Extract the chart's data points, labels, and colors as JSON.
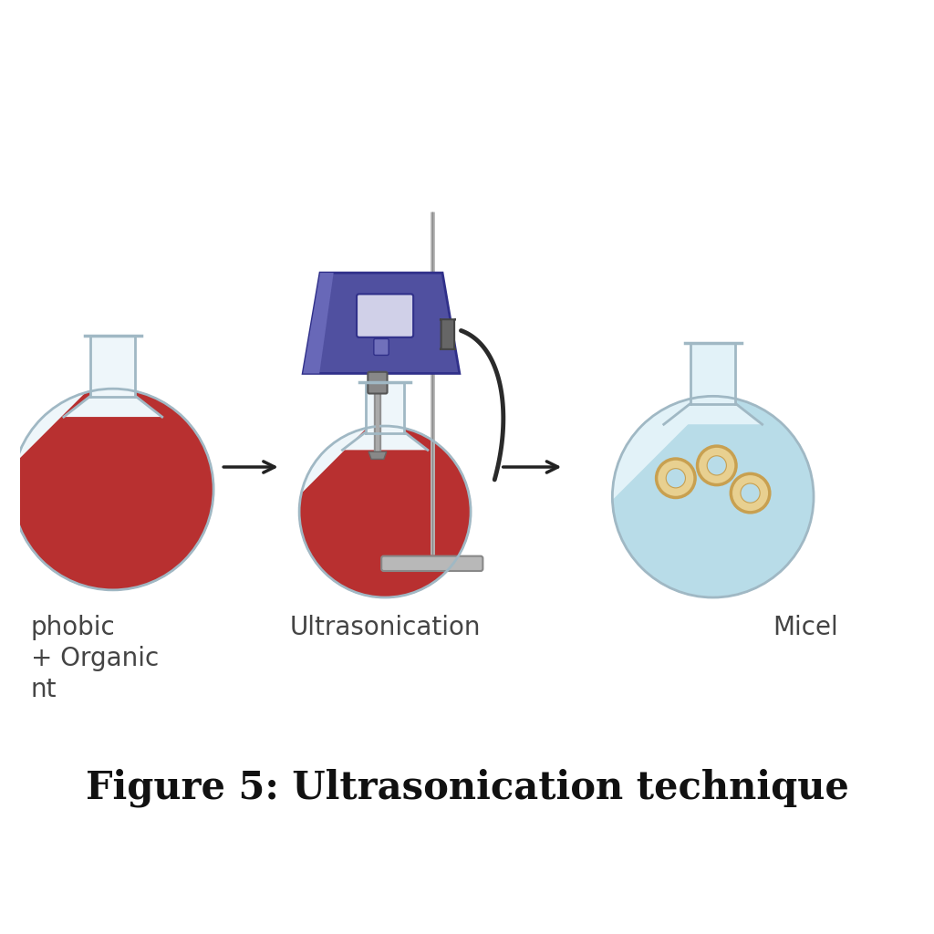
{
  "title": "Figure 5: Ultrasonication technique",
  "title_fontsize": 30,
  "background_color": "#ffffff",
  "label1_lines": [
    "phobic",
    "+ Organic",
    "nt"
  ],
  "label2": "Ultrasonication",
  "label3": "Micel",
  "flask1_liquid_color": "#b83030",
  "flask2_liquid_color": "#b83030",
  "flask3_liquid_color": "#b8dce8",
  "flask_glass_color": "#eef6fa",
  "flask_glass_edge": "#a0b8c4",
  "sonicator_body_color": "#5050a0",
  "sonicator_dark": "#30308a",
  "sonicator_mid": "#6868b8",
  "sonicator_light": "#9898cc",
  "stand_color": "#b8b8b8",
  "stand_dark": "#888888",
  "micelle_ring_outer": "#c8a050",
  "micelle_ring_face": "#e8d090",
  "micelle_inner_color": "#b8dce8",
  "arrow_color": "#222222",
  "label_color": "#444444"
}
